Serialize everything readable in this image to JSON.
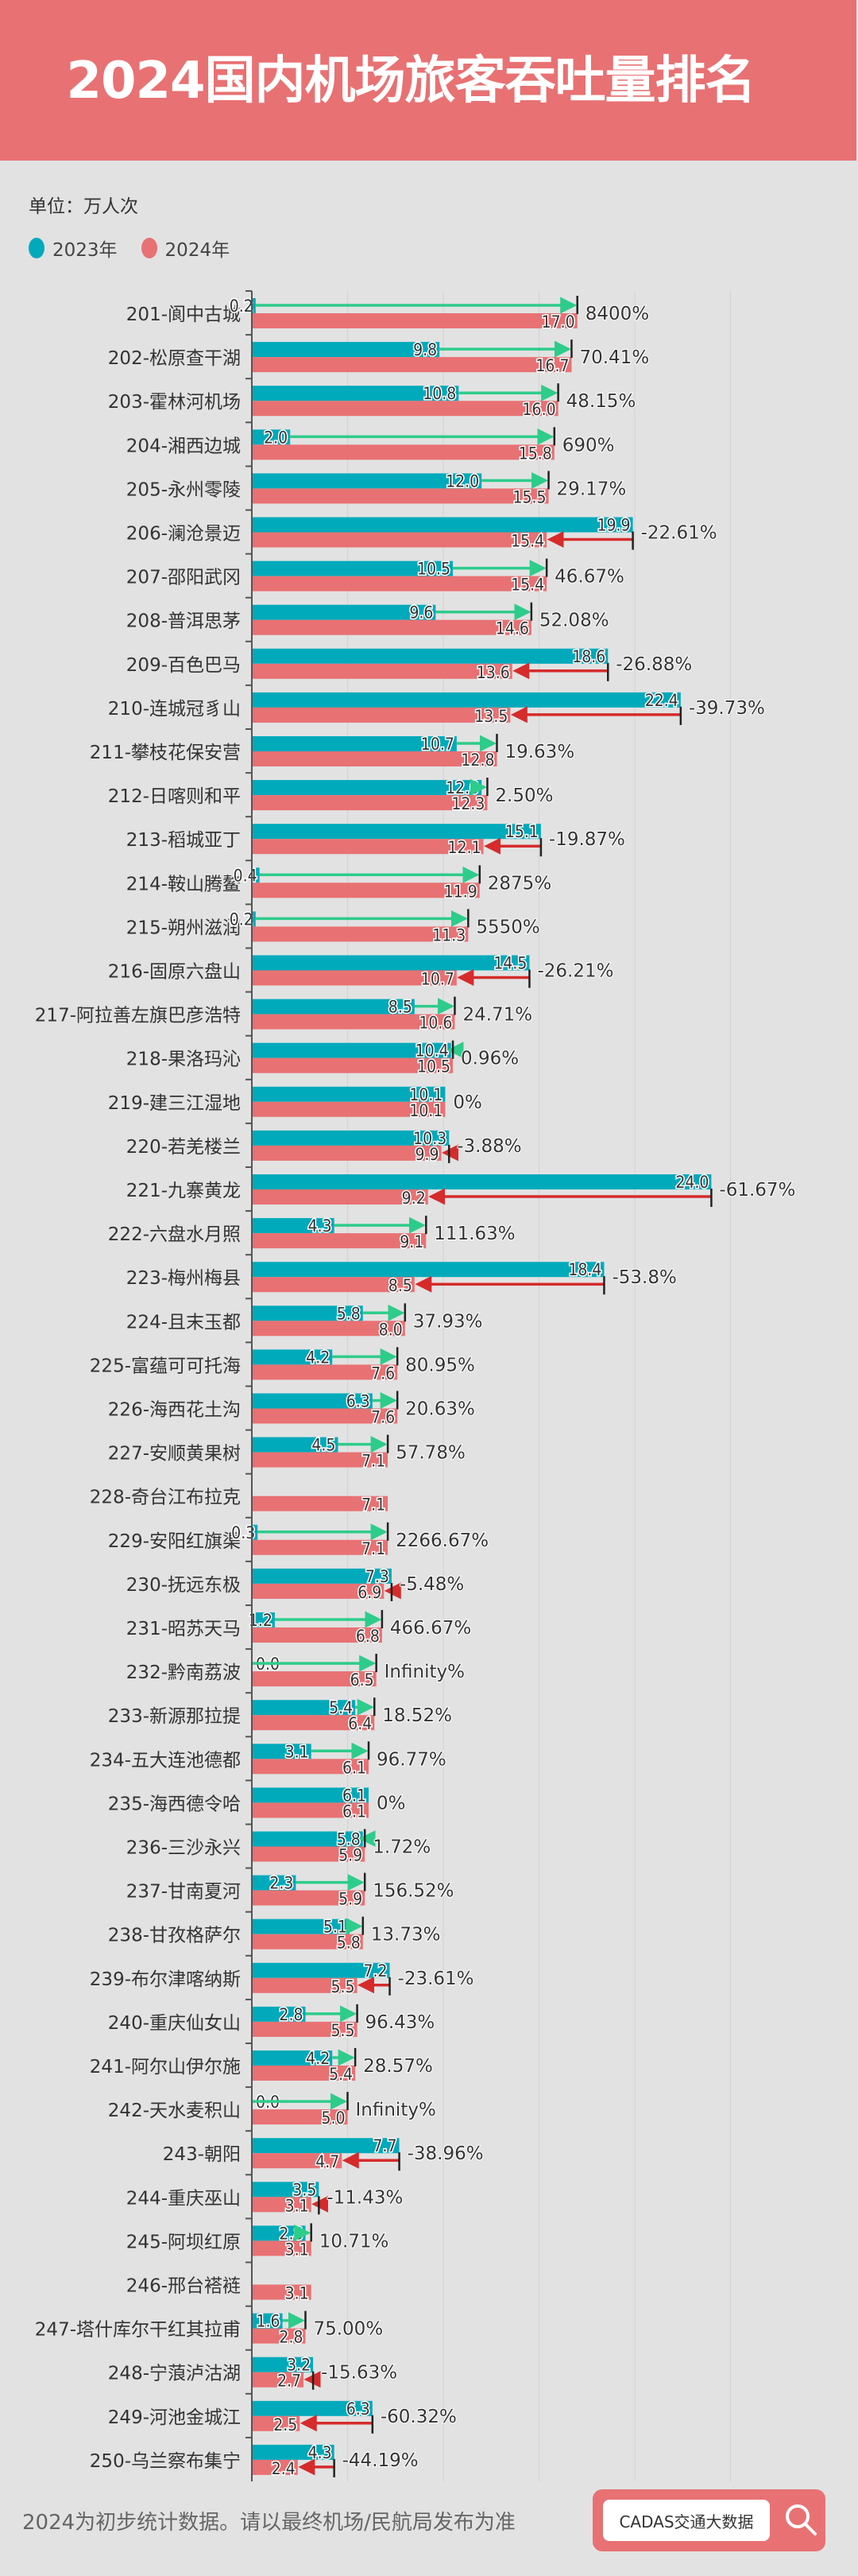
{
  "header": {
    "title": "2024国内机场旅客吞吐量排名"
  },
  "unit_label": "单位：万人次",
  "footer": {
    "note": "2024为初步统计数据。请以最终机场/民航局发布为准",
    "badge": "CADAS交通大数据",
    "badge_icon": "search-icon"
  },
  "colors": {
    "header": "#e87173",
    "y2023": "#00aabb",
    "y2024": "#e87173",
    "increase_arrow": "#2ecc8a",
    "decrease_arrow": "#d62b2b",
    "background": "#e2e2e2"
  },
  "chart_data": {
    "type": "bar",
    "orientation": "horizontal",
    "legend": [
      "2023年",
      "2024年"
    ],
    "legend_position": "top-left",
    "xlim": [
      0,
      25
    ],
    "grid": true,
    "categories": [
      "201-阆中古城",
      "202-松原查干湖",
      "203-霍林河机场",
      "204-湘西边城",
      "205-永州零陵",
      "206-澜沧景迈",
      "207-邵阳武冈",
      "208-普洱思茅",
      "209-百色巴马",
      "210-连城冠豸山",
      "211-攀枝花保安营",
      "212-日喀则和平",
      "213-稻城亚丁",
      "214-鞍山腾鳌",
      "215-朔州滋润",
      "216-固原六盘山",
      "217-阿拉善左旗巴彦浩特",
      "218-果洛玛沁",
      "219-建三江湿地",
      "220-若羌楼兰",
      "221-九寨黄龙",
      "222-六盘水月照",
      "223-梅州梅县",
      "224-且末玉都",
      "225-富蕴可可托海",
      "226-海西花土沟",
      "227-安顺黄果树",
      "228-奇台江布拉克",
      "229-安阳红旗渠",
      "230-抚远东极",
      "231-昭苏天马",
      "232-黔南荔波",
      "233-新源那拉提",
      "234-五大连池德都",
      "235-海西德令哈",
      "236-三沙永兴",
      "237-甘南夏河",
      "238-甘孜格萨尔",
      "239-布尔津喀纳斯",
      "240-重庆仙女山",
      "241-阿尔山伊尔施",
      "242-天水麦积山",
      "243-朝阳",
      "244-重庆巫山",
      "245-阿坝红原",
      "246-邢台褡裢",
      "247-塔什库尔干红其拉甫",
      "248-宁蒗泸沽湖",
      "249-河池金城江",
      "250-乌兰察布集宁"
    ],
    "series": [
      {
        "name": "2023年",
        "values": [
          0.2,
          9.8,
          10.8,
          2.0,
          12.0,
          19.9,
          10.5,
          9.6,
          18.6,
          22.4,
          10.7,
          12.0,
          15.1,
          0.4,
          0.2,
          14.5,
          8.5,
          10.4,
          10.1,
          10.3,
          24.0,
          4.3,
          18.4,
          5.8,
          4.2,
          6.3,
          4.5,
          null,
          0.3,
          7.3,
          1.2,
          0.0,
          5.4,
          3.1,
          6.1,
          5.8,
          2.3,
          5.1,
          7.2,
          2.8,
          4.2,
          0.0,
          7.7,
          3.5,
          2.8,
          null,
          1.6,
          3.2,
          6.3,
          4.3
        ]
      },
      {
        "name": "2024年",
        "values": [
          17.0,
          16.7,
          16.0,
          15.8,
          15.5,
          15.4,
          15.4,
          14.6,
          13.6,
          13.5,
          12.8,
          12.3,
          12.1,
          11.9,
          11.3,
          10.7,
          10.6,
          10.5,
          10.1,
          9.9,
          9.2,
          9.1,
          8.5,
          8.0,
          7.6,
          7.6,
          7.1,
          7.1,
          7.1,
          6.9,
          6.8,
          6.5,
          6.4,
          6.1,
          6.1,
          5.9,
          5.9,
          5.8,
          5.5,
          5.5,
          5.4,
          5.0,
          4.7,
          3.1,
          3.1,
          3.1,
          2.8,
          2.7,
          2.5,
          2.4
        ]
      }
    ],
    "change_labels": [
      "8400%",
      "70.41%",
      "48.15%",
      "690%",
      "29.17%",
      "-22.61%",
      "46.67%",
      "52.08%",
      "-26.88%",
      "-39.73%",
      "19.63%",
      "2.50%",
      "-19.87%",
      "2875%",
      "5550%",
      "-26.21%",
      "24.71%",
      "0.96%",
      "0%",
      "-3.88%",
      "-61.67%",
      "111.63%",
      "-53.8%",
      "37.93%",
      "80.95%",
      "20.63%",
      "57.78%",
      "",
      "2266.67%",
      "-5.48%",
      "466.67%",
      "Infinity%",
      "18.52%",
      "96.77%",
      "0%",
      "1.72%",
      "156.52%",
      "13.73%",
      "-23.61%",
      "96.43%",
      "28.57%",
      "Infinity%",
      "-38.96%",
      "-11.43%",
      "10.71%",
      "",
      "75.00%",
      "-15.63%",
      "-60.32%",
      "-44.19%"
    ]
  }
}
